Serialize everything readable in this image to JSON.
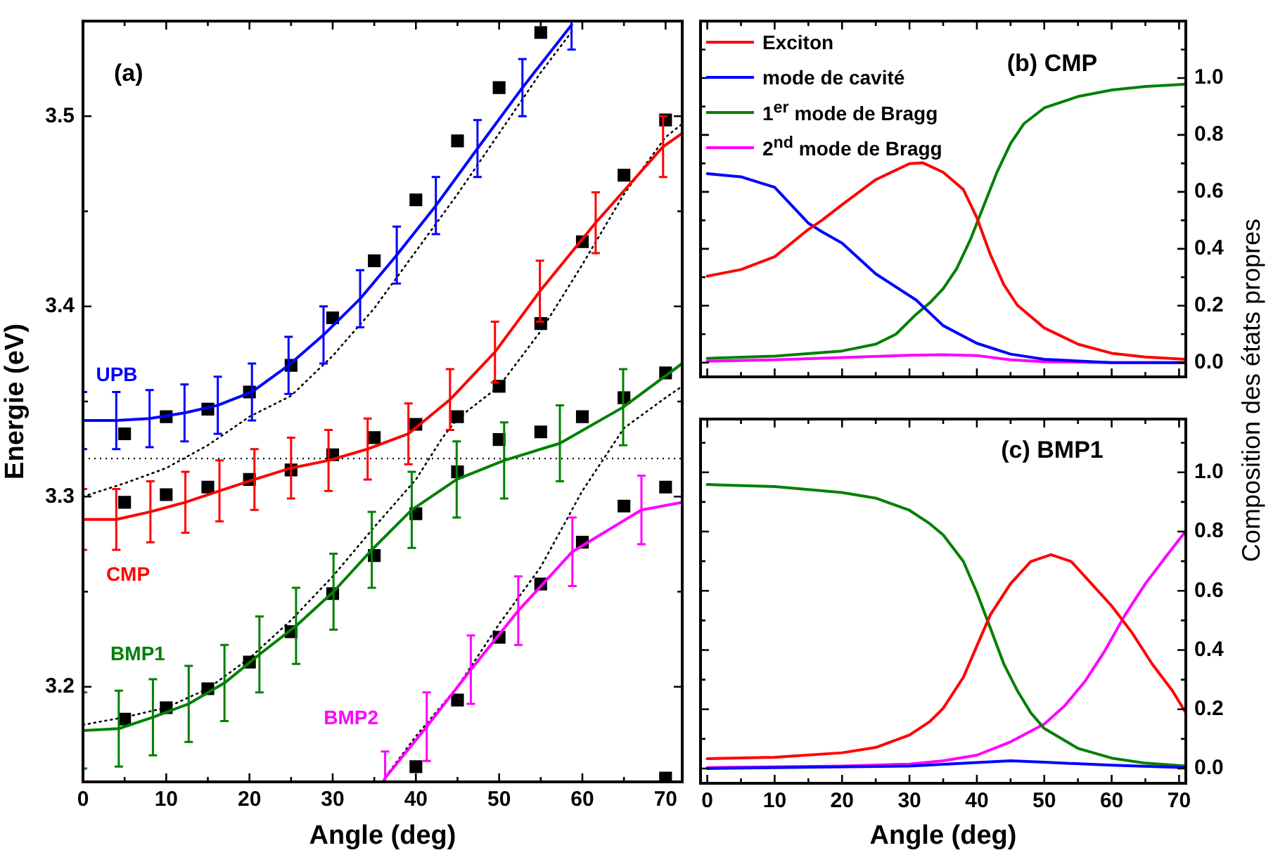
{
  "chart_data": [
    {
      "type": "line",
      "title": "(a)",
      "xlabel": "Angle (deg)",
      "ylabel": "Energie (eV)",
      "xlim": [
        0,
        72
      ],
      "ylim": [
        3.15,
        3.55
      ],
      "xticks": [
        0,
        {
          "value": 5,
          "label": null
        },
        10,
        {
          "value": 15,
          "label": null
        },
        20,
        {
          "value": 25,
          "label": null
        },
        30,
        {
          "value": 35,
          "label": null
        },
        40,
        {
          "value": 45,
          "label": null
        },
        50,
        {
          "value": 55,
          "label": null
        },
        60,
        {
          "value": 65,
          "label": null
        },
        70
      ],
      "yticks": [
        3.2,
        {
          "value": 3.25,
          "label": null
        },
        3.3,
        {
          "value": 3.35,
          "label": null
        },
        3.4,
        {
          "value": 3.45,
          "label": null
        },
        3.5
      ],
      "series": [
        {
          "name": "UPB",
          "color": "#0000ff",
          "x": [
            0,
            4,
            8,
            12.2,
            16.2,
            20.3,
            24.7,
            28.9,
            33.3,
            37.7,
            42.4,
            47.4,
            52.8,
            58.7
          ],
          "values": [
            3.34,
            3.34,
            3.341,
            3.344,
            3.348,
            3.355,
            3.369,
            3.385,
            3.404,
            3.427,
            3.453,
            3.483,
            3.515,
            3.548
          ],
          "errors": [
            0.015,
            0.015,
            0.015,
            0.015,
            0.015,
            0.015,
            0.015,
            0.015,
            0.015,
            0.015,
            0.015,
            0.015,
            0.015,
            [
              3.535,
              3.55
            ]
          ]
        },
        {
          "name": "CMP",
          "color": "#ff0000",
          "x": [
            0,
            4,
            8.1,
            12.3,
            16.4,
            20.6,
            25,
            29.5,
            34.2,
            39.1,
            44.1,
            49.5,
            54.9,
            61.6,
            69.7,
            72
          ],
          "values": [
            3.288,
            3.288,
            3.292,
            3.297,
            3.303,
            3.309,
            3.315,
            3.319,
            3.325,
            3.333,
            3.351,
            3.376,
            3.408,
            3.444,
            3.484,
            3.491
          ],
          "errors": [
            0.016,
            0.016,
            0.016,
            0.016,
            0.016,
            0.016,
            0.016,
            0.016,
            0.016,
            0.016,
            0.016,
            0.016,
            0.016,
            0.016,
            0.016,
            null
          ]
        },
        {
          "name": "BMP1",
          "color": "#008000",
          "x": [
            0,
            4.3,
            8.4,
            12.7,
            17,
            21.2,
            25.6,
            30.1,
            34.7,
            39.5,
            44.9,
            50.6,
            57.3,
            64.9,
            72
          ],
          "values": [
            3.177,
            3.178,
            3.184,
            3.191,
            3.202,
            3.217,
            3.232,
            3.25,
            3.272,
            3.293,
            3.309,
            3.319,
            3.328,
            3.347,
            3.37
          ],
          "errors": [
            0.02,
            0.02,
            0.02,
            0.02,
            0.02,
            0.02,
            0.02,
            0.02,
            0.02,
            0.02,
            0.02,
            0.02,
            0.02,
            0.02,
            null
          ]
        },
        {
          "name": "BMP2",
          "color": "#ff00ff",
          "x": [
            36.1,
            36.3,
            41.3,
            46.6,
            52.3,
            58.8,
            67.1,
            72
          ],
          "values": [
            3.15,
            3.152,
            3.179,
            3.209,
            3.24,
            3.271,
            3.293,
            3.297
          ],
          "errors": [
            null,
            [
              3.15,
              3.166
            ],
            0.018,
            0.018,
            0.018,
            0.018,
            0.018,
            null
          ]
        },
        {
          "color": "#000000",
          "line_style": "dotted",
          "x": [
            0,
            5,
            10,
            15,
            20,
            25,
            30,
            35,
            40,
            45,
            50,
            55,
            59
          ],
          "values": [
            3.3,
            3.307,
            3.315,
            3.327,
            3.342,
            3.353,
            3.374,
            3.399,
            3.429,
            3.459,
            3.491,
            3.523,
            3.546
          ]
        },
        {
          "color": "#000000",
          "line_style": "dotted",
          "x": [
            0,
            5,
            10,
            15,
            20,
            25,
            30,
            35,
            40,
            43.2,
            45,
            50,
            55,
            60,
            65,
            70,
            72
          ],
          "values": [
            3.18,
            3.184,
            3.189,
            3.199,
            3.215,
            3.235,
            3.258,
            3.284,
            3.309,
            3.331,
            3.341,
            3.358,
            3.387,
            3.422,
            3.459,
            3.489,
            3.496
          ]
        },
        {
          "color": "#000000",
          "line_style": "dotted",
          "x": [
            36.4,
            40,
            45,
            50,
            55,
            60,
            65,
            70,
            72
          ],
          "values": [
            3.153,
            3.174,
            3.2,
            3.233,
            3.263,
            3.303,
            3.336,
            3.352,
            3.358
          ]
        },
        {
          "type": "scatter",
          "color": "#000000",
          "marker": "square",
          "x": [
            5,
            5,
            5,
            10,
            10,
            10,
            15,
            15,
            15,
            20,
            20,
            20,
            25,
            25,
            25,
            30,
            30,
            30,
            35,
            35,
            35,
            40,
            40,
            40,
            40,
            45,
            45,
            45,
            45,
            50,
            50,
            50,
            50,
            55,
            55,
            55,
            55,
            60,
            60,
            60,
            65,
            65,
            65,
            70,
            70,
            70,
            70
          ],
          "values": [
            3.333,
            3.297,
            3.183,
            3.342,
            3.301,
            3.189,
            3.346,
            3.305,
            3.199,
            3.355,
            3.309,
            3.213,
            3.369,
            3.314,
            3.229,
            3.394,
            3.322,
            3.249,
            3.424,
            3.331,
            3.269,
            3.456,
            3.338,
            3.291,
            3.158,
            3.487,
            3.342,
            3.313,
            3.193,
            3.515,
            3.358,
            3.33,
            3.226,
            3.544,
            3.391,
            3.334,
            3.254,
            3.434,
            3.342,
            3.276,
            3.469,
            3.352,
            3.295,
            3.498,
            3.365,
            3.305,
            3.152
          ]
        }
      ],
      "ref_lines": [
        {
          "axis": "y",
          "value": 3.32,
          "line_style": "dotted",
          "color": "#000000"
        }
      ]
    },
    {
      "type": "line",
      "title": "(b) CMP",
      "ylabel": "Composition des états propres",
      "xlim": [
        -1,
        71
      ],
      "ylim": [
        -0.05,
        1.2
      ],
      "tick_labels": "y",
      "legend": "top left",
      "xticks": [
        0,
        {
          "value": 5,
          "label": null
        },
        10,
        {
          "value": 15,
          "label": null
        },
        20,
        {
          "value": 25,
          "label": null
        },
        30,
        {
          "value": 35,
          "label": null
        },
        40,
        {
          "value": 45,
          "label": null
        },
        50,
        {
          "value": 55,
          "label": null
        },
        60,
        {
          "value": 65,
          "label": null
        },
        70
      ],
      "yticks": [
        {
          "value": 0,
          "label": "0.0"
        },
        {
          "value": 0.1,
          "label": null
        },
        {
          "value": 0.2,
          "label": "0.2"
        },
        {
          "value": 0.3,
          "label": null
        },
        {
          "value": 0.4,
          "label": "0.4"
        },
        {
          "value": 0.5,
          "label": null
        },
        {
          "value": 0.6,
          "label": "0.6"
        },
        {
          "value": 0.7,
          "label": null
        },
        {
          "value": 0.8,
          "label": "0.8"
        },
        {
          "value": 0.9,
          "label": null
        },
        {
          "value": 1.0,
          "label": "1.0"
        },
        {
          "value": 1.1,
          "label": null
        }
      ],
      "series": [
        {
          "name": "Exciton",
          "color": "#ff0000",
          "x": [
            0,
            5,
            10,
            15,
            17,
            20,
            25,
            30,
            32,
            35,
            38,
            40,
            42,
            44,
            46,
            50,
            55,
            60,
            65,
            71
          ],
          "values": [
            0.304,
            0.327,
            0.372,
            0.468,
            0.5,
            0.555,
            0.643,
            0.699,
            0.702,
            0.669,
            0.608,
            0.509,
            0.38,
            0.274,
            0.202,
            0.122,
            0.065,
            0.033,
            0.02,
            0.012
          ]
        },
        {
          "name": "mode de cavité",
          "color": "#0000ff",
          "x": [
            0,
            5,
            10,
            15,
            17,
            20,
            25,
            31,
            35,
            40,
            45,
            50,
            60,
            71
          ],
          "values": [
            0.664,
            0.653,
            0.616,
            0.49,
            0.46,
            0.42,
            0.312,
            0.22,
            0.13,
            0.068,
            0.03,
            0.012,
            0.0,
            0.0
          ]
        },
        {
          "name": "1$^{er}$ mode de Bragg",
          "color": "#008000",
          "x": [
            0,
            10,
            20,
            25,
            28,
            31,
            33,
            35,
            37,
            39,
            41,
            43,
            45,
            47,
            50,
            55,
            60,
            65,
            71
          ],
          "values": [
            0.015,
            0.023,
            0.041,
            0.065,
            0.1,
            0.17,
            0.21,
            0.26,
            0.33,
            0.43,
            0.55,
            0.67,
            0.77,
            0.84,
            0.895,
            0.935,
            0.958,
            0.97,
            0.978
          ]
        },
        {
          "name": "2$^{nd}$ mode de Bragg",
          "color": "#ff00ff",
          "x": [
            0,
            10,
            20,
            30,
            35,
            40,
            45,
            50,
            60,
            71
          ],
          "values": [
            0.005,
            0.01,
            0.018,
            0.026,
            0.028,
            0.025,
            0.01,
            0.003,
            0.0,
            0.0
          ]
        }
      ]
    },
    {
      "type": "line",
      "title": "(c) BMP1",
      "xlabel": "Angle (deg)",
      "xlim": [
        -1,
        71
      ],
      "ylim": [
        -0.05,
        1.18
      ],
      "xticks": [
        0,
        {
          "value": 5,
          "label": null
        },
        10,
        {
          "value": 15,
          "label": null
        },
        20,
        {
          "value": 25,
          "label": null
        },
        30,
        {
          "value": 35,
          "label": null
        },
        40,
        {
          "value": 45,
          "label": null
        },
        50,
        {
          "value": 55,
          "label": null
        },
        60,
        {
          "value": 65,
          "label": null
        },
        70
      ],
      "yticks": [
        {
          "value": 0,
          "label": "0.0"
        },
        {
          "value": 0.1,
          "label": null
        },
        {
          "value": 0.2,
          "label": "0.2"
        },
        {
          "value": 0.3,
          "label": null
        },
        {
          "value": 0.4,
          "label": "0.4"
        },
        {
          "value": 0.5,
          "label": null
        },
        {
          "value": 0.6,
          "label": "0.6"
        },
        {
          "value": 0.7,
          "label": null
        },
        {
          "value": 0.8,
          "label": "0.8"
        },
        {
          "value": 0.9,
          "label": null
        },
        {
          "value": 1.0,
          "label": "1.0"
        },
        {
          "value": 1.1,
          "label": null
        }
      ],
      "series": [
        {
          "color": "#ff0000",
          "x": [
            0,
            10,
            20,
            25,
            30,
            33,
            35,
            38,
            40,
            42,
            45,
            48,
            51,
            54,
            57,
            60,
            63,
            66,
            69,
            71
          ],
          "values": [
            0.033,
            0.038,
            0.053,
            0.071,
            0.113,
            0.158,
            0.203,
            0.308,
            0.414,
            0.519,
            0.624,
            0.699,
            0.722,
            0.699,
            0.624,
            0.549,
            0.459,
            0.353,
            0.263,
            0.188
          ]
        },
        {
          "color": "#0000ff",
          "x": [
            0,
            30,
            40,
            45,
            50,
            60,
            71
          ],
          "values": [
            0.0,
            0.008,
            0.02,
            0.026,
            0.021,
            0.011,
            0.003
          ]
        },
        {
          "color": "#008000",
          "x": [
            0,
            10,
            20,
            25,
            30,
            33,
            35,
            38,
            40,
            42,
            44,
            46,
            48,
            50,
            55,
            60,
            65,
            71
          ],
          "values": [
            0.959,
            0.952,
            0.932,
            0.913,
            0.872,
            0.827,
            0.789,
            0.699,
            0.594,
            0.474,
            0.353,
            0.263,
            0.188,
            0.135,
            0.068,
            0.035,
            0.018,
            0.008
          ]
        },
        {
          "color": "#ff00ff",
          "x": [
            0,
            20,
            30,
            35,
            40,
            45,
            50,
            53,
            56,
            59,
            62,
            65,
            68,
            71
          ],
          "values": [
            0.003,
            0.008,
            0.015,
            0.026,
            0.045,
            0.09,
            0.15,
            0.211,
            0.293,
            0.398,
            0.519,
            0.624,
            0.714,
            0.802
          ]
        }
      ]
    }
  ]
}
